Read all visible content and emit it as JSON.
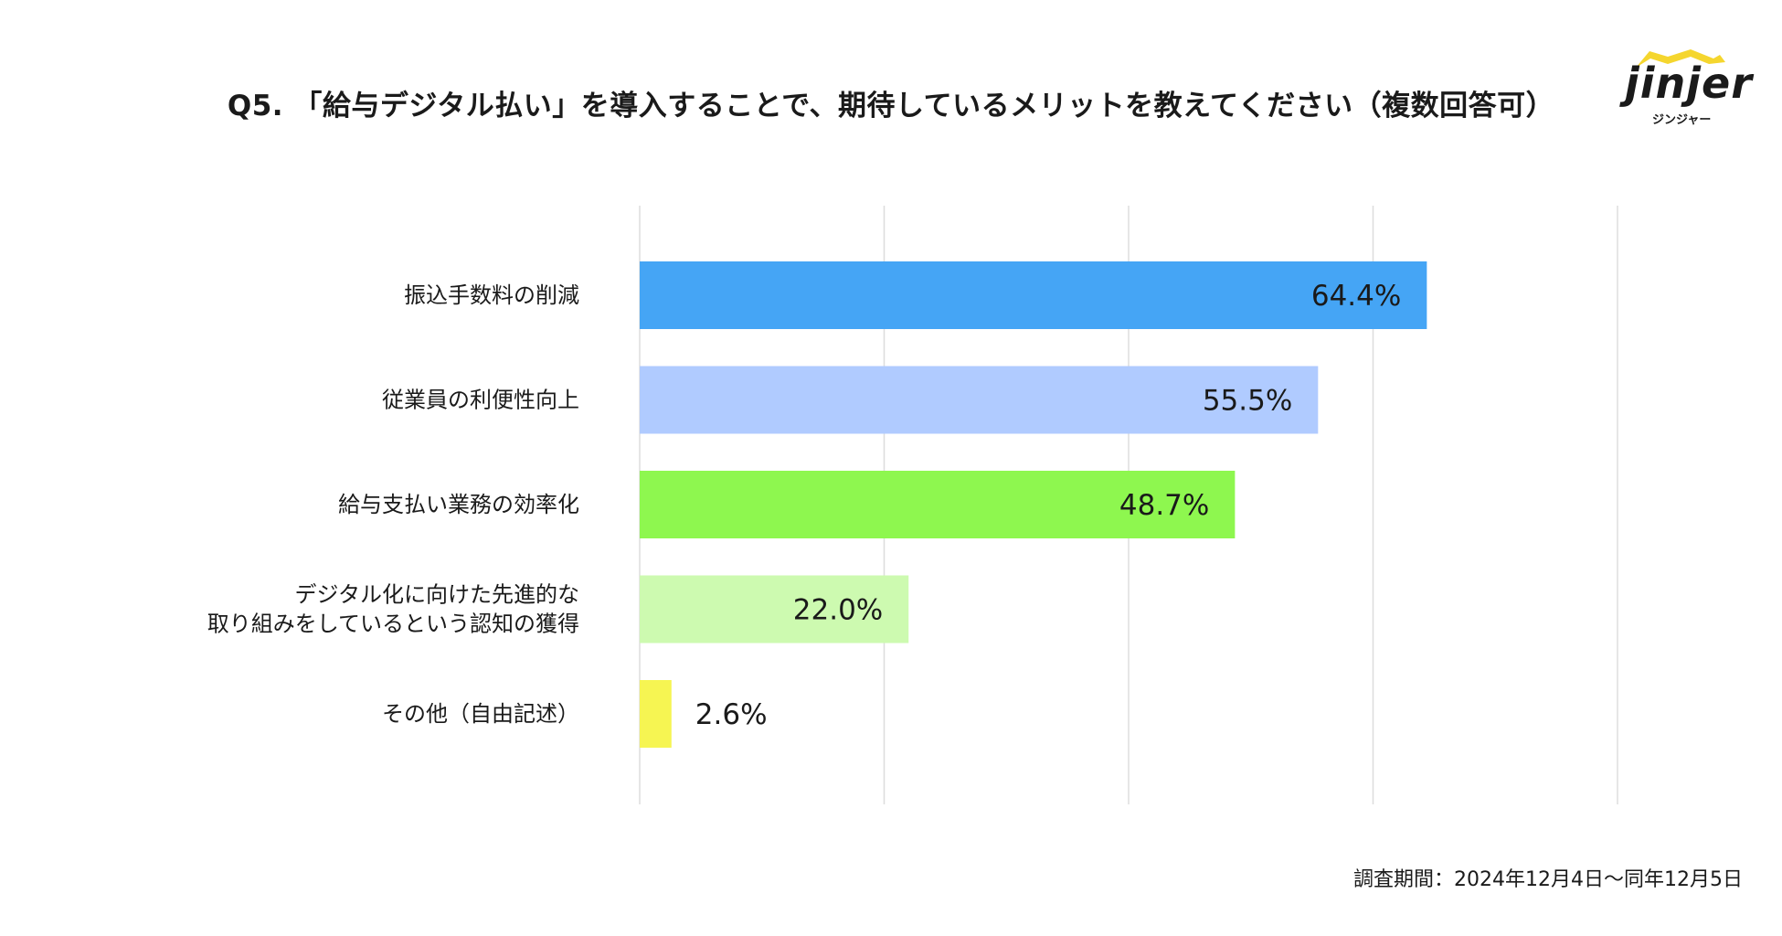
{
  "header": {
    "title": "Q5. 「給与デジタル払い」を導入することで、期待しているメリットを教えてください（複数回答可）"
  },
  "logo": {
    "main": "jinjer",
    "sub": "ジンジャー",
    "accent_color": "#f5d62e"
  },
  "chart_data": {
    "type": "bar",
    "orientation": "horizontal",
    "title": "Q5. 「給与デジタル払い」を導入することで、期待しているメリットを教えてください（複数回答可）",
    "categories": [
      [
        "振込手数料の削減"
      ],
      [
        "従業員の利便性向上"
      ],
      [
        "給与支払い業務の効率化"
      ],
      [
        "デジタル化に向けた先進的な",
        "取り組みをしているという認知の獲得"
      ],
      [
        "その他（自由記述）"
      ]
    ],
    "values": [
      64.4,
      55.5,
      48.7,
      22.0,
      2.6
    ],
    "value_labels": [
      "64.4%",
      "55.5%",
      "48.7%",
      "22.0%",
      "2.6%"
    ],
    "colors": [
      "#45a5f5",
      "#b0cbff",
      "#8ef74f",
      "#cdfab0",
      "#f6f552"
    ],
    "xlim": [
      0,
      80
    ],
    "gridlines": [
      0,
      20,
      40,
      60,
      80
    ],
    "unit": "%"
  },
  "footer": {
    "survey_period": "調査期間：2024年12月4日〜同年12月5日"
  }
}
